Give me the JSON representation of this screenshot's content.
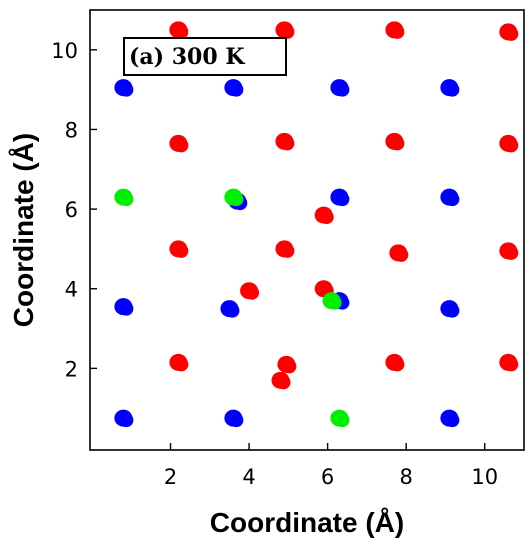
{
  "chart_data": {
    "type": "scatter",
    "title": "",
    "xlabel": "Coordinate (Å)",
    "ylabel": "Coordinate (Å)",
    "xlim": [
      -0.05,
      11.0
    ],
    "ylim": [
      -0.05,
      11.0
    ],
    "xticks": [
      2,
      4,
      6,
      8,
      10
    ],
    "yticks": [
      2,
      4,
      6,
      8,
      10
    ],
    "annotation": "(a) 300 K",
    "grid": false,
    "legend": "none",
    "series": [
      {
        "color": "#ff0000",
        "points": [
          [
            2.2,
            10.5
          ],
          [
            4.9,
            10.5
          ],
          [
            7.7,
            10.5
          ],
          [
            10.6,
            10.45
          ],
          [
            2.2,
            7.65
          ],
          [
            4.9,
            7.7
          ],
          [
            7.7,
            7.7
          ],
          [
            10.6,
            7.65
          ],
          [
            5.9,
            5.85
          ],
          [
            2.2,
            5.0
          ],
          [
            4.9,
            5.0
          ],
          [
            7.8,
            4.9
          ],
          [
            10.6,
            4.95
          ],
          [
            4.0,
            3.95
          ],
          [
            5.9,
            4.0
          ],
          [
            2.2,
            2.15
          ],
          [
            4.95,
            2.1
          ],
          [
            7.7,
            2.15
          ],
          [
            10.6,
            2.15
          ],
          [
            4.8,
            1.7
          ]
        ]
      },
      {
        "color": "#0000ff",
        "points": [
          [
            0.8,
            9.05
          ],
          [
            3.6,
            9.05
          ],
          [
            6.3,
            9.05
          ],
          [
            9.1,
            9.05
          ],
          [
            3.7,
            6.2
          ],
          [
            6.3,
            6.3
          ],
          [
            9.1,
            6.3
          ],
          [
            0.8,
            3.55
          ],
          [
            3.5,
            3.5
          ],
          [
            6.3,
            3.7
          ],
          [
            9.1,
            3.5
          ],
          [
            0.8,
            0.75
          ],
          [
            3.6,
            0.75
          ],
          [
            9.1,
            0.75
          ]
        ]
      },
      {
        "color": "#00ee00",
        "points": [
          [
            0.8,
            6.3
          ],
          [
            3.6,
            6.3
          ],
          [
            6.1,
            3.7
          ],
          [
            6.3,
            0.75
          ]
        ]
      }
    ]
  }
}
